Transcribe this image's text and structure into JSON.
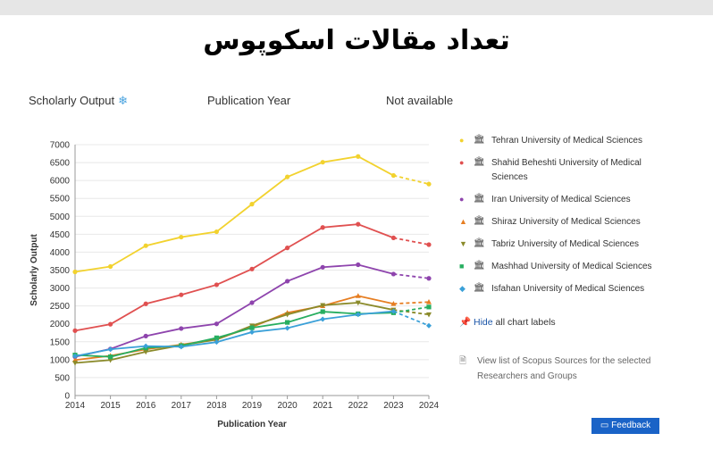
{
  "title": "تعداد مقالات  اسکوپوس",
  "header": {
    "metric": "Scholarly Output",
    "metric_icon": "snowflake-icon",
    "xaxis_select": "Publication Year",
    "third": "Not available"
  },
  "chart_data": {
    "type": "line",
    "xlabel": "Publication Year",
    "ylabel": "Scholarly Output",
    "x": [
      2014,
      2015,
      2016,
      2017,
      2018,
      2019,
      2020,
      2021,
      2022,
      2023,
      2024
    ],
    "ylim": [
      0,
      7000
    ],
    "yticks": [
      0,
      500,
      1000,
      1500,
      2000,
      2500,
      3000,
      3500,
      4000,
      4500,
      5000,
      5500,
      6000,
      6500,
      7000
    ],
    "grid": "horizontal",
    "legend": "right",
    "dashed_from_index": 9,
    "series": [
      {
        "name": "Tehran University of Medical Sciences",
        "color": "#f2d22e",
        "marker": "circle",
        "values": [
          3450,
          3600,
          4180,
          4420,
          4570,
          5340,
          6100,
          6510,
          6670,
          6140,
          5900
        ]
      },
      {
        "name": "Shahid Beheshti University of Medical Sciences",
        "color": "#e05050",
        "marker": "circle",
        "values": [
          1810,
          1990,
          2560,
          2810,
          3090,
          3530,
          4120,
          4690,
          4780,
          4400,
          4210
        ]
      },
      {
        "name": "Iran University of Medical Sciences",
        "color": "#8e44ad",
        "marker": "circle",
        "values": [
          1080,
          1300,
          1660,
          1870,
          2000,
          2590,
          3190,
          3580,
          3650,
          3390,
          3270
        ]
      },
      {
        "name": "Shiraz University of Medical Sciences",
        "color": "#e67e22",
        "marker": "triangle-up",
        "values": [
          990,
          1110,
          1290,
          1420,
          1570,
          1910,
          2310,
          2500,
          2780,
          2560,
          2610
        ]
      },
      {
        "name": "Tabriz University of Medical Sciences",
        "color": "#8a8a2a",
        "marker": "triangle-down",
        "values": [
          910,
          990,
          1220,
          1400,
          1560,
          1950,
          2260,
          2520,
          2590,
          2390,
          2260
        ]
      },
      {
        "name": "Mashhad University of Medical Sciences",
        "color": "#27ae60",
        "marker": "square",
        "values": [
          1130,
          1080,
          1330,
          1390,
          1610,
          1890,
          2040,
          2340,
          2280,
          2310,
          2470
        ]
      },
      {
        "name": "Isfahan University of Medical Sciences",
        "color": "#3aa0d8",
        "marker": "diamond",
        "values": [
          1100,
          1290,
          1380,
          1360,
          1490,
          1770,
          1880,
          2130,
          2260,
          2350,
          1950
        ]
      }
    ]
  },
  "legend_icon": "institution-icon",
  "hide_label": "Hide",
  "hide_suffix": "all chart labels",
  "sources_text": "View list of Scopus Sources for the selected Researchers and Groups",
  "feedback_label": "Feedback"
}
